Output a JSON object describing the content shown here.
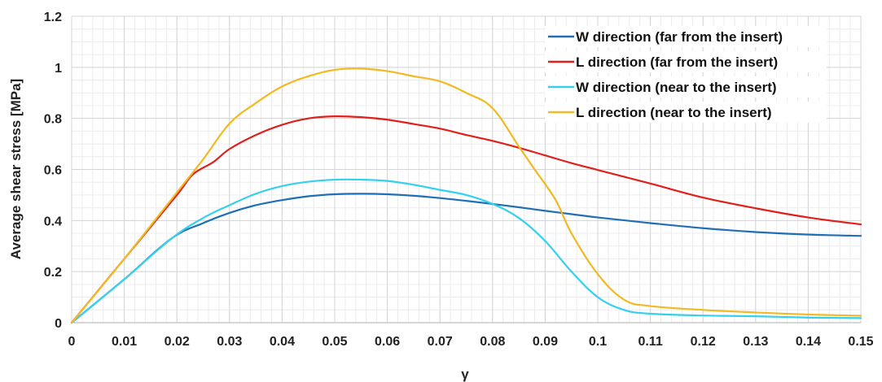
{
  "chart_data": {
    "type": "line",
    "xlabel": "γ",
    "ylabel": "Average shear stress [MPa]",
    "xlim": [
      0,
      0.15
    ],
    "ylim": [
      0,
      1.2
    ],
    "grid": true,
    "legend_position": "top-right",
    "x_ticks": [
      "0",
      "0.01",
      "0.02",
      "0.03",
      "0.04",
      "0.05",
      "0.06",
      "0.07",
      "0.08",
      "0.09",
      "0.1",
      "0.11",
      "0.12",
      "0.13",
      "0.14",
      "0.15"
    ],
    "y_ticks": [
      "0",
      "0.2",
      "0.4",
      "0.6",
      "0.8",
      "1",
      "1.2"
    ],
    "series": [
      {
        "name": "W direction (far from the insert)",
        "color": "#1f6fb8",
        "x": [
          0,
          0.01,
          0.019,
          0.025,
          0.03,
          0.035,
          0.04,
          0.045,
          0.05,
          0.055,
          0.06,
          0.065,
          0.07,
          0.075,
          0.08,
          0.085,
          0.09,
          0.095,
          0.1,
          0.11,
          0.12,
          0.13,
          0.14,
          0.15
        ],
        "y": [
          0,
          0.17,
          0.33,
          0.39,
          0.43,
          0.46,
          0.48,
          0.495,
          0.503,
          0.505,
          0.503,
          0.497,
          0.488,
          0.477,
          0.465,
          0.452,
          0.438,
          0.425,
          0.412,
          0.39,
          0.37,
          0.355,
          0.345,
          0.34
        ]
      },
      {
        "name": "L direction (far from the insert)",
        "color": "#e0201c",
        "x": [
          0,
          0.01,
          0.02,
          0.023,
          0.027,
          0.03,
          0.035,
          0.04,
          0.045,
          0.05,
          0.055,
          0.06,
          0.065,
          0.07,
          0.075,
          0.08,
          0.085,
          0.09,
          0.095,
          0.1,
          0.11,
          0.12,
          0.13,
          0.14,
          0.15
        ],
        "y": [
          0,
          0.25,
          0.5,
          0.58,
          0.63,
          0.68,
          0.735,
          0.775,
          0.8,
          0.808,
          0.805,
          0.795,
          0.778,
          0.76,
          0.735,
          0.712,
          0.685,
          0.655,
          0.625,
          0.598,
          0.545,
          0.49,
          0.448,
          0.412,
          0.385
        ]
      },
      {
        "name": "W direction (near to the insert)",
        "color": "#34d0ee",
        "x": [
          0,
          0.01,
          0.019,
          0.025,
          0.03,
          0.035,
          0.04,
          0.045,
          0.05,
          0.055,
          0.06,
          0.065,
          0.07,
          0.075,
          0.08,
          0.085,
          0.09,
          0.095,
          0.1,
          0.105,
          0.11,
          0.12,
          0.13,
          0.14,
          0.15
        ],
        "y": [
          0,
          0.17,
          0.33,
          0.41,
          0.46,
          0.505,
          0.535,
          0.552,
          0.56,
          0.56,
          0.555,
          0.54,
          0.52,
          0.5,
          0.465,
          0.41,
          0.32,
          0.2,
          0.1,
          0.05,
          0.035,
          0.028,
          0.025,
          0.02,
          0.018
        ]
      },
      {
        "name": "L direction (near to the insert)",
        "color": "#f2b922",
        "x": [
          0,
          0.01,
          0.02,
          0.025,
          0.03,
          0.035,
          0.04,
          0.045,
          0.05,
          0.055,
          0.06,
          0.065,
          0.07,
          0.075,
          0.08,
          0.085,
          0.088,
          0.092,
          0.095,
          0.1,
          0.105,
          0.11,
          0.12,
          0.13,
          0.14,
          0.15
        ],
        "y": [
          0,
          0.25,
          0.51,
          0.64,
          0.78,
          0.86,
          0.925,
          0.965,
          0.99,
          0.995,
          0.985,
          0.965,
          0.945,
          0.9,
          0.84,
          0.69,
          0.6,
          0.48,
          0.35,
          0.19,
          0.09,
          0.065,
          0.05,
          0.04,
          0.032,
          0.027
        ]
      }
    ]
  }
}
